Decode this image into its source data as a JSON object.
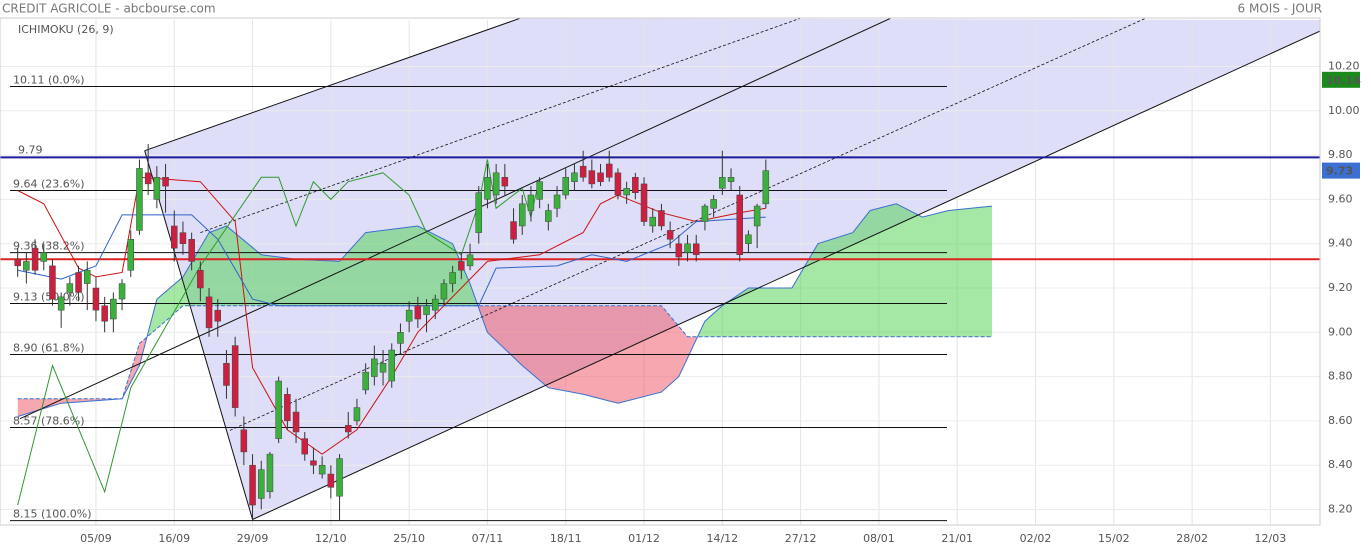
{
  "header": {
    "title": "CREDIT AGRICOLE - abcbourse.com",
    "period": "6 MOIS - JOUR"
  },
  "chart_data": {
    "type": "candlestick",
    "indicator_label": "ICHIMOKU (26, 9)",
    "xlim": [
      -2.03,
      149.7
    ],
    "ylim": [
      8.13,
      10.41
    ],
    "xticks": [
      {
        "value": 9,
        "label": "05/09"
      },
      {
        "value": 18,
        "label": "16/09"
      },
      {
        "value": 27,
        "label": "29/09"
      },
      {
        "value": 36,
        "label": "12/10"
      },
      {
        "value": 45,
        "label": "25/10"
      },
      {
        "value": 54,
        "label": "07/11"
      },
      {
        "value": 63,
        "label": "18/11"
      },
      {
        "value": 72,
        "label": "01/12"
      },
      {
        "value": 81,
        "label": "14/12"
      },
      {
        "value": 90,
        "label": "27/12"
      },
      {
        "value": 99,
        "label": "08/01"
      },
      {
        "value": 108,
        "label": "21/01"
      },
      {
        "value": 117,
        "label": "02/02"
      },
      {
        "value": 126,
        "label": "15/02"
      },
      {
        "value": 135,
        "label": "28/02"
      },
      {
        "value": 144,
        "label": "12/03"
      }
    ],
    "yticks": [
      {
        "value": 8.2,
        "label": "8.20"
      },
      {
        "value": 8.4,
        "label": "8.40"
      },
      {
        "value": 8.6,
        "label": "8.60"
      },
      {
        "value": 8.8,
        "label": "8.80"
      },
      {
        "value": 9.0,
        "label": "9.00"
      },
      {
        "value": 9.2,
        "label": "9.20"
      },
      {
        "value": 9.4,
        "label": "9.40"
      },
      {
        "value": 9.6,
        "label": "9.60"
      },
      {
        "value": 9.8,
        "label": "9.80"
      },
      {
        "value": 10.0,
        "label": "10.00"
      },
      {
        "value": 10.2,
        "label": "10.20"
      }
    ],
    "grid": true,
    "candles": {
      "up_color": "#3cb03c",
      "down_color": "#cc2040",
      "open": [
        9.33,
        9.28,
        9.38,
        9.32,
        9.3,
        9.1,
        9.18,
        9.27,
        9.22,
        9.2,
        9.12,
        9.06,
        9.15,
        9.28,
        9.46,
        9.72,
        9.6,
        9.7,
        9.48,
        9.45,
        9.42,
        9.28,
        9.16,
        9.1,
        8.86,
        8.94,
        8.56,
        8.4,
        8.25,
        8.28,
        8.52,
        8.72,
        8.64,
        8.52,
        8.42,
        8.36,
        8.36,
        8.26,
        8.58,
        8.6,
        8.74,
        8.8,
        8.82,
        8.78,
        8.95,
        9.05,
        9.12,
        9.08,
        9.1,
        9.15,
        9.22,
        9.32,
        9.3,
        9.45,
        9.6,
        9.62,
        9.7,
        9.5,
        9.48,
        9.55,
        9.6,
        9.5,
        9.56,
        9.62,
        9.68,
        9.75,
        9.73,
        9.72,
        9.76,
        9.72,
        9.62,
        9.7,
        9.67,
        9.48,
        9.55,
        9.46,
        9.4,
        9.36,
        9.4,
        9.5,
        9.56,
        9.65,
        9.68,
        9.62,
        9.4,
        9.48,
        9.58
      ],
      "high": [
        9.38,
        9.36,
        9.42,
        9.4,
        9.33,
        9.18,
        9.25,
        9.3,
        9.32,
        9.25,
        9.16,
        9.18,
        9.24,
        9.46,
        9.78,
        9.85,
        9.75,
        9.76,
        9.55,
        9.5,
        9.45,
        9.32,
        9.2,
        9.15,
        8.92,
        8.98,
        8.62,
        8.45,
        8.42,
        8.46,
        8.8,
        8.75,
        8.7,
        8.55,
        8.48,
        8.44,
        8.4,
        8.45,
        8.64,
        8.7,
        8.86,
        8.94,
        8.92,
        8.95,
        9.04,
        9.14,
        9.16,
        9.15,
        9.17,
        9.24,
        9.3,
        9.36,
        9.4,
        9.66,
        9.76,
        9.76,
        9.76,
        9.56,
        9.62,
        9.66,
        9.7,
        9.58,
        9.66,
        9.74,
        9.76,
        9.82,
        9.78,
        9.76,
        9.82,
        9.74,
        9.68,
        9.72,
        9.7,
        9.56,
        9.58,
        9.5,
        9.44,
        9.44,
        9.44,
        9.58,
        9.62,
        9.82,
        9.74,
        9.66,
        9.46,
        9.58,
        9.78
      ],
      "low": [
        9.25,
        9.22,
        9.26,
        9.28,
        9.12,
        9.02,
        9.12,
        9.14,
        9.1,
        9.05,
        9.0,
        9.0,
        9.1,
        9.25,
        9.44,
        9.62,
        9.56,
        9.54,
        9.32,
        9.35,
        9.28,
        9.14,
        8.98,
        8.98,
        8.7,
        8.62,
        8.4,
        8.15,
        8.2,
        8.25,
        8.5,
        8.56,
        8.5,
        8.42,
        8.36,
        8.34,
        8.25,
        8.15,
        8.52,
        8.58,
        8.72,
        8.76,
        8.76,
        8.75,
        8.9,
        9.0,
        9.02,
        9.0,
        9.06,
        9.12,
        9.18,
        9.24,
        9.28,
        9.4,
        9.56,
        9.58,
        9.62,
        9.4,
        9.44,
        9.5,
        9.56,
        9.46,
        9.52,
        9.6,
        9.64,
        9.68,
        9.65,
        9.66,
        9.68,
        9.6,
        9.58,
        9.6,
        9.48,
        9.45,
        9.46,
        9.38,
        9.3,
        9.32,
        9.32,
        9.46,
        9.52,
        9.62,
        9.64,
        9.32,
        9.36,
        9.38,
        9.56
      ],
      "close": [
        9.3,
        9.32,
        9.28,
        9.36,
        9.15,
        9.16,
        9.22,
        9.18,
        9.28,
        9.1,
        9.05,
        9.15,
        9.22,
        9.42,
        9.74,
        9.67,
        9.7,
        9.66,
        9.38,
        9.4,
        9.32,
        9.2,
        9.02,
        9.05,
        8.76,
        8.66,
        8.46,
        8.22,
        8.38,
        8.45,
        8.78,
        8.6,
        8.55,
        8.45,
        8.4,
        8.4,
        8.3,
        8.43,
        8.55,
        8.66,
        8.82,
        8.88,
        8.86,
        8.92,
        9.0,
        9.1,
        9.06,
        9.12,
        9.15,
        9.22,
        9.27,
        9.28,
        9.35,
        9.63,
        9.7,
        9.72,
        9.66,
        9.42,
        9.58,
        9.62,
        9.68,
        9.55,
        9.62,
        9.7,
        9.72,
        9.7,
        9.67,
        9.68,
        9.7,
        9.62,
        9.65,
        9.63,
        9.5,
        9.52,
        9.48,
        9.42,
        9.34,
        9.4,
        9.35,
        9.57,
        9.6,
        9.7,
        9.7,
        9.35,
        9.44,
        9.57,
        9.73
      ]
    },
    "series": [
      {
        "name": "tenkan",
        "color": "#cc1111",
        "x": [
          0,
          3,
          7,
          9,
          12,
          14,
          21,
          25,
          27,
          31,
          35,
          39,
          43,
          46,
          50,
          54,
          60,
          65,
          67,
          69,
          74,
          78,
          83,
          86
        ],
        "values": [
          9.64,
          9.58,
          9.29,
          9.25,
          9.27,
          9.7,
          9.68,
          9.5,
          8.84,
          8.56,
          8.45,
          8.56,
          8.8,
          9.0,
          9.16,
          9.32,
          9.35,
          9.45,
          9.58,
          9.62,
          9.54,
          9.5,
          9.54,
          9.56
        ]
      },
      {
        "name": "kijun",
        "color": "#2f62c8",
        "x": [
          0,
          5,
          9,
          12,
          20,
          23,
          27,
          30,
          53,
          55,
          62,
          66,
          70,
          75,
          78,
          86
        ],
        "values": [
          9.28,
          9.24,
          9.3,
          9.53,
          9.53,
          9.42,
          9.15,
          9.12,
          9.12,
          9.29,
          9.3,
          9.35,
          9.32,
          9.4,
          9.5,
          9.52
        ]
      },
      {
        "name": "chikou",
        "color": "#2e9a2e",
        "x": [
          0,
          4,
          10,
          13,
          21,
          28,
          30,
          32,
          34,
          36,
          38,
          42,
          45,
          47,
          51,
          53,
          54,
          55,
          58,
          59,
          60
        ],
        "values": [
          8.22,
          8.85,
          8.28,
          8.75,
          9.3,
          9.7,
          9.7,
          9.48,
          9.68,
          9.6,
          9.68,
          9.72,
          9.62,
          9.45,
          9.35,
          9.58,
          9.78,
          9.56,
          9.65,
          9.52,
          9.7
        ]
      }
    ],
    "cloud": {
      "up_color": "#4ccf4c",
      "down_color": "#f05060",
      "line_color": "#3a6fd0",
      "span_a": {
        "x": [
          0,
          5,
          12,
          14,
          16,
          19,
          22,
          24,
          28,
          32,
          37,
          40,
          46,
          50,
          52,
          54,
          58,
          61,
          65,
          69,
          74,
          76,
          79,
          81,
          84,
          89,
          92,
          96,
          98,
          101,
          104,
          107,
          112
        ],
        "values": [
          8.62,
          8.68,
          8.7,
          8.85,
          9.15,
          9.25,
          9.45,
          9.48,
          9.35,
          9.33,
          9.32,
          9.45,
          9.48,
          9.4,
          9.22,
          9.0,
          8.85,
          8.75,
          8.72,
          8.68,
          8.73,
          8.8,
          9.05,
          9.12,
          9.2,
          9.2,
          9.4,
          9.45,
          9.55,
          9.58,
          9.52,
          9.55,
          9.57
        ]
      },
      "span_b": {
        "x": [
          0,
          12,
          14,
          17,
          19,
          52,
          74,
          77,
          112
        ],
        "values": [
          8.7,
          8.7,
          8.95,
          9.05,
          9.12,
          9.12,
          9.12,
          8.98,
          8.98
        ]
      }
    },
    "fib_levels": [
      {
        "value": 10.11,
        "label": "10.11 (0.0%)"
      },
      {
        "value": 9.64,
        "label": "9.64 (23.6%)"
      },
      {
        "value": 9.36,
        "label": "9.36 (38.2%)"
      },
      {
        "value": 9.13,
        "label": "9.13 (50.0%)"
      },
      {
        "value": 8.9,
        "label": "8.90 (61.8%)"
      },
      {
        "value": 8.57,
        "label": "8.57 (78.6%)"
      },
      {
        "value": 8.15,
        "label": "8.15 (100.0%)"
      }
    ],
    "levels": [
      {
        "value": 9.79,
        "color": "#1c1c9c",
        "show_label": true
      },
      {
        "value": 9.33,
        "color": "#dd2222",
        "show_label": false
      }
    ],
    "trendlines": [
      {
        "x": [
          14.6,
          57.7
        ],
        "y": [
          9.82,
          10.417
        ],
        "style": "solid"
      },
      {
        "x": [
          21.0,
          89.9
        ],
        "y": [
          9.45,
          10.417
        ],
        "style": "dashed"
      },
      {
        "x": [
          0.26,
          100.3
        ],
        "y": [
          8.61,
          10.417
        ],
        "style": "solid"
      },
      {
        "x": [
          24.4,
          129.6
        ],
        "y": [
          8.557,
          10.417
        ],
        "style": "dashed"
      },
      {
        "x": [
          27.0,
          149.7
        ],
        "y": [
          8.155,
          10.36
        ],
        "style": "solid"
      },
      {
        "x": [
          14.6,
          27.0
        ],
        "y": [
          9.82,
          8.155
        ],
        "style": "solid"
      }
    ],
    "channel_color": "#6b6be0",
    "price_tags": [
      {
        "value": 10.14,
        "color": "#1a8a1a"
      },
      {
        "value": 9.73,
        "color": "#3b6fd4"
      }
    ]
  }
}
